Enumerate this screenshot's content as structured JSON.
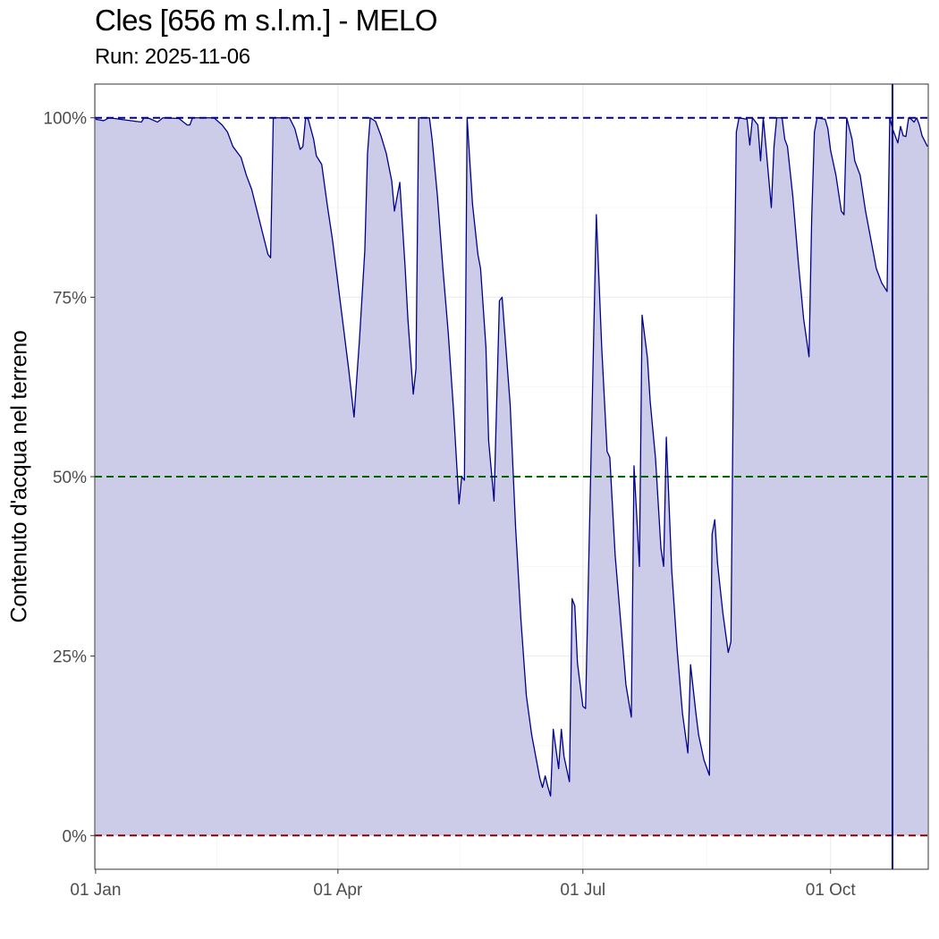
{
  "chart_data": {
    "type": "area",
    "title": "Cles [656 m s.l.m.] - MELO",
    "subtitle": "Run: 2025-11-06",
    "xlabel": "",
    "ylabel": "Contenuto d'acqua nel terreno",
    "x_range": [
      "2025-01-01",
      "2025-11-06"
    ],
    "ylim": [
      -0.047,
      1.047
    ],
    "x_ticks": [
      {
        "date": "2025-01-01",
        "label": "01 Jan"
      },
      {
        "date": "2025-04-01",
        "label": "01 Apr"
      },
      {
        "date": "2025-07-01",
        "label": "01 Jul"
      },
      {
        "date": "2025-10-01",
        "label": "01 Oct"
      }
    ],
    "y_ticks": [
      {
        "value": 0,
        "label": "0%"
      },
      {
        "value": 0.25,
        "label": "25%"
      },
      {
        "value": 0.5,
        "label": "50%"
      },
      {
        "value": 0.75,
        "label": "75%"
      },
      {
        "value": 1,
        "label": "100%"
      }
    ],
    "grid": true,
    "reference_lines": [
      {
        "value": 1.0,
        "color": "#00008B",
        "style": "dashed"
      },
      {
        "value": 0.5,
        "color": "#006400",
        "style": "dashed"
      },
      {
        "value": 0.0,
        "color": "#8B0000",
        "style": "dashed"
      }
    ],
    "vertical_marker": {
      "date": "2025-10-24",
      "color": "#00008B"
    },
    "series": [
      {
        "line_color": "#00008B",
        "fill_color": "#CCCCE8",
        "points": [
          [
            "2025-01-01",
            0.998
          ],
          [
            "2025-01-04",
            0.996
          ],
          [
            "2025-01-06",
            1.0
          ],
          [
            "2025-01-12",
            0.997
          ],
          [
            "2025-01-18",
            0.994
          ],
          [
            "2025-01-19",
            1.0
          ],
          [
            "2025-01-21",
            0.999
          ],
          [
            "2025-01-24",
            0.994
          ],
          [
            "2025-01-26",
            1.0
          ],
          [
            "2025-02-01",
            0.999
          ],
          [
            "2025-02-04",
            0.99
          ],
          [
            "2025-02-05",
            0.99
          ],
          [
            "2025-02-06",
            1.0
          ],
          [
            "2025-02-14",
            1.0
          ],
          [
            "2025-02-17",
            0.99
          ],
          [
            "2025-02-19",
            0.98
          ],
          [
            "2025-02-21",
            0.96
          ],
          [
            "2025-02-23",
            0.95
          ],
          [
            "2025-02-24",
            0.945
          ],
          [
            "2025-02-26",
            0.92
          ],
          [
            "2025-02-28",
            0.9
          ],
          [
            "2025-03-02",
            0.87
          ],
          [
            "2025-03-04",
            0.84
          ],
          [
            "2025-03-06",
            0.81
          ],
          [
            "2025-03-07",
            0.805
          ],
          [
            "2025-03-08",
            1.0
          ],
          [
            "2025-03-14",
            1.0
          ],
          [
            "2025-03-16",
            0.985
          ],
          [
            "2025-03-18",
            0.956
          ],
          [
            "2025-03-19",
            0.96
          ],
          [
            "2025-03-20",
            1.0
          ],
          [
            "2025-03-21",
            0.998
          ],
          [
            "2025-03-23",
            0.97
          ],
          [
            "2025-03-24",
            0.947
          ],
          [
            "2025-03-26",
            0.935
          ],
          [
            "2025-03-28",
            0.88
          ],
          [
            "2025-03-30",
            0.83
          ],
          [
            "2025-04-01",
            0.77
          ],
          [
            "2025-04-03",
            0.71
          ],
          [
            "2025-04-05",
            0.65
          ],
          [
            "2025-04-07",
            0.583
          ],
          [
            "2025-04-09",
            0.69
          ],
          [
            "2025-04-11",
            0.815
          ],
          [
            "2025-04-12",
            0.95
          ],
          [
            "2025-04-13",
            1.0
          ],
          [
            "2025-04-15",
            0.995
          ],
          [
            "2025-04-17",
            0.975
          ],
          [
            "2025-04-19",
            0.95
          ],
          [
            "2025-04-21",
            0.912
          ],
          [
            "2025-04-22",
            0.87
          ],
          [
            "2025-04-24",
            0.91
          ],
          [
            "2025-04-26",
            0.79
          ],
          [
            "2025-04-27",
            0.72
          ],
          [
            "2025-04-29",
            0.615
          ],
          [
            "2025-04-30",
            0.65
          ],
          [
            "2025-05-01",
            1.0
          ],
          [
            "2025-05-05",
            1.0
          ],
          [
            "2025-05-06",
            0.97
          ],
          [
            "2025-05-08",
            0.89
          ],
          [
            "2025-05-10",
            0.79
          ],
          [
            "2025-05-12",
            0.7
          ],
          [
            "2025-05-14",
            0.59
          ],
          [
            "2025-05-16",
            0.462
          ],
          [
            "2025-05-17",
            0.5
          ],
          [
            "2025-05-18",
            0.495
          ],
          [
            "2025-05-19",
            1.0
          ],
          [
            "2025-05-21",
            0.88
          ],
          [
            "2025-05-23",
            0.81
          ],
          [
            "2025-05-24",
            0.79
          ],
          [
            "2025-05-26",
            0.68
          ],
          [
            "2025-05-27",
            0.55
          ],
          [
            "2025-05-29",
            0.466
          ],
          [
            "2025-05-31",
            0.745
          ],
          [
            "2025-06-01",
            0.75
          ],
          [
            "2025-06-02",
            0.7
          ],
          [
            "2025-06-04",
            0.6
          ],
          [
            "2025-06-06",
            0.43
          ],
          [
            "2025-06-08",
            0.3
          ],
          [
            "2025-06-10",
            0.195
          ],
          [
            "2025-06-12",
            0.14
          ],
          [
            "2025-06-14",
            0.1
          ],
          [
            "2025-06-15",
            0.08
          ],
          [
            "2025-06-16",
            0.067
          ],
          [
            "2025-06-17",
            0.083
          ],
          [
            "2025-06-18",
            0.068
          ],
          [
            "2025-06-19",
            0.055
          ],
          [
            "2025-06-20",
            0.148
          ],
          [
            "2025-06-22",
            0.093
          ],
          [
            "2025-06-23",
            0.148
          ],
          [
            "2025-06-24",
            0.11
          ],
          [
            "2025-06-26",
            0.075
          ],
          [
            "2025-06-27",
            0.33
          ],
          [
            "2025-06-28",
            0.32
          ],
          [
            "2025-06-29",
            0.24
          ],
          [
            "2025-07-01",
            0.18
          ],
          [
            "2025-07-02",
            0.177
          ],
          [
            "2025-07-06",
            0.865
          ],
          [
            "2025-07-08",
            0.68
          ],
          [
            "2025-07-10",
            0.535
          ],
          [
            "2025-07-11",
            0.527
          ],
          [
            "2025-07-13",
            0.39
          ],
          [
            "2025-07-15",
            0.3
          ],
          [
            "2025-07-17",
            0.21
          ],
          [
            "2025-07-19",
            0.165
          ],
          [
            "2025-07-20",
            0.515
          ],
          [
            "2025-07-22",
            0.375
          ],
          [
            "2025-07-23",
            0.725
          ],
          [
            "2025-07-25",
            0.665
          ],
          [
            "2025-07-26",
            0.605
          ],
          [
            "2025-07-28",
            0.525
          ],
          [
            "2025-07-30",
            0.4
          ],
          [
            "2025-07-31",
            0.375
          ],
          [
            "2025-08-01",
            0.555
          ],
          [
            "2025-08-03",
            0.37
          ],
          [
            "2025-08-05",
            0.26
          ],
          [
            "2025-08-07",
            0.17
          ],
          [
            "2025-08-09",
            0.115
          ],
          [
            "2025-08-10",
            0.238
          ],
          [
            "2025-08-12",
            0.17
          ],
          [
            "2025-08-13",
            0.14
          ],
          [
            "2025-08-15",
            0.105
          ],
          [
            "2025-08-17",
            0.084
          ],
          [
            "2025-08-18",
            0.42
          ],
          [
            "2025-08-19",
            0.44
          ],
          [
            "2025-08-20",
            0.38
          ],
          [
            "2025-08-22",
            0.31
          ],
          [
            "2025-08-24",
            0.255
          ],
          [
            "2025-08-25",
            0.27
          ],
          [
            "2025-08-26",
            0.68
          ],
          [
            "2025-08-27",
            0.98
          ],
          [
            "2025-08-28",
            1.0
          ],
          [
            "2025-08-31",
            0.998
          ],
          [
            "2025-09-01",
            0.962
          ],
          [
            "2025-09-02",
            1.0
          ],
          [
            "2025-09-04",
            0.99
          ],
          [
            "2025-09-05",
            0.94
          ],
          [
            "2025-09-06",
            1.0
          ],
          [
            "2025-09-07",
            0.96
          ],
          [
            "2025-09-09",
            0.875
          ],
          [
            "2025-09-10",
            0.96
          ],
          [
            "2025-09-11",
            1.0
          ],
          [
            "2025-09-13",
            1.0
          ],
          [
            "2025-09-14",
            0.97
          ],
          [
            "2025-09-15",
            0.96
          ],
          [
            "2025-09-17",
            0.89
          ],
          [
            "2025-09-19",
            0.8
          ],
          [
            "2025-09-21",
            0.72
          ],
          [
            "2025-09-23",
            0.667
          ],
          [
            "2025-09-24",
            0.86
          ],
          [
            "2025-09-25",
            0.98
          ],
          [
            "2025-09-26",
            1.0
          ],
          [
            "2025-09-29",
            0.998
          ],
          [
            "2025-09-30",
            0.985
          ],
          [
            "2025-10-01",
            0.955
          ],
          [
            "2025-10-03",
            0.92
          ],
          [
            "2025-10-05",
            0.87
          ],
          [
            "2025-10-06",
            0.865
          ],
          [
            "2025-10-07",
            1.0
          ],
          [
            "2025-10-09",
            0.97
          ],
          [
            "2025-10-10",
            0.94
          ],
          [
            "2025-10-12",
            0.92
          ],
          [
            "2025-10-14",
            0.87
          ],
          [
            "2025-10-16",
            0.83
          ],
          [
            "2025-10-18",
            0.79
          ],
          [
            "2025-10-20",
            0.77
          ],
          [
            "2025-10-22",
            0.758
          ],
          [
            "2025-10-23",
            1.0
          ],
          [
            "2025-10-24",
            0.985
          ],
          [
            "2025-10-26",
            0.965
          ],
          [
            "2025-10-27",
            0.988
          ],
          [
            "2025-10-28",
            0.975
          ],
          [
            "2025-10-29",
            0.974
          ],
          [
            "2025-10-30",
            1.0
          ],
          [
            "2025-10-31",
            0.998
          ],
          [
            "2025-11-01",
            0.994
          ],
          [
            "2025-11-02",
            1.0
          ],
          [
            "2025-11-03",
            0.99
          ],
          [
            "2025-11-04",
            0.975
          ],
          [
            "2025-11-06",
            0.96
          ]
        ]
      }
    ]
  }
}
